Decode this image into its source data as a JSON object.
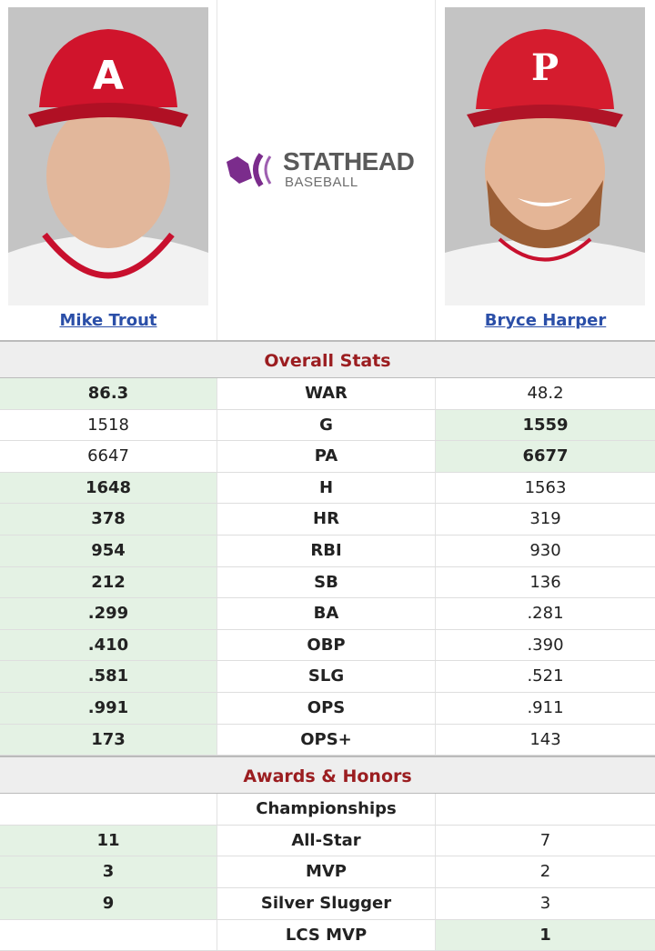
{
  "players": {
    "left": {
      "name": "Mike Trout"
    },
    "right": {
      "name": "Bryce Harper"
    }
  },
  "logo": {
    "line1": "STATHEAD",
    "line2": "BASEBALL",
    "icon": "stathead-logo-icon"
  },
  "colors": {
    "winner_bg": "#e4f2e4",
    "section_title": "#9b1d20",
    "link": "#2b4fa8"
  },
  "overall": {
    "title": "Overall Stats",
    "rows": [
      {
        "stat": "WAR",
        "left": "86.3",
        "right": "48.2",
        "winner": "left"
      },
      {
        "stat": "G",
        "left": "1518",
        "right": "1559",
        "winner": "right"
      },
      {
        "stat": "PA",
        "left": "6647",
        "right": "6677",
        "winner": "right"
      },
      {
        "stat": "H",
        "left": "1648",
        "right": "1563",
        "winner": "left"
      },
      {
        "stat": "HR",
        "left": "378",
        "right": "319",
        "winner": "left"
      },
      {
        "stat": "RBI",
        "left": "954",
        "right": "930",
        "winner": "left"
      },
      {
        "stat": "SB",
        "left": "212",
        "right": "136",
        "winner": "left"
      },
      {
        "stat": "BA",
        "left": ".299",
        "right": ".281",
        "winner": "left"
      },
      {
        "stat": "OBP",
        "left": ".410",
        "right": ".390",
        "winner": "left"
      },
      {
        "stat": "SLG",
        "left": ".581",
        "right": ".521",
        "winner": "left"
      },
      {
        "stat": "OPS",
        "left": ".991",
        "right": ".911",
        "winner": "left"
      },
      {
        "stat": "OPS+",
        "left": "173",
        "right": "143",
        "winner": "left"
      }
    ]
  },
  "awards": {
    "title": "Awards & Honors",
    "subheader": "Championships",
    "rows": [
      {
        "stat": "All-Star",
        "left": "11",
        "right": "7",
        "winner": "left"
      },
      {
        "stat": "MVP",
        "left": "3",
        "right": "2",
        "winner": "left"
      },
      {
        "stat": "Silver Slugger",
        "left": "9",
        "right": "3",
        "winner": "left"
      },
      {
        "stat": "LCS MVP",
        "left": "",
        "right": "1",
        "winner": "right"
      }
    ]
  }
}
